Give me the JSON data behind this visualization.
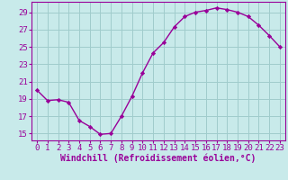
{
  "x": [
    0,
    1,
    2,
    3,
    4,
    5,
    6,
    7,
    8,
    9,
    10,
    11,
    12,
    13,
    14,
    15,
    16,
    17,
    18,
    19,
    20,
    21,
    22,
    23
  ],
  "y": [
    20.0,
    18.8,
    18.9,
    18.6,
    16.5,
    15.8,
    14.9,
    15.0,
    17.0,
    19.3,
    22.0,
    24.3,
    25.5,
    27.3,
    28.5,
    29.0,
    29.2,
    29.5,
    29.3,
    29.0,
    28.5,
    27.5,
    26.3,
    25.0
  ],
  "line_color": "#990099",
  "marker": "D",
  "marker_size": 2.2,
  "bg_color": "#c8eaea",
  "grid_color": "#a0cccc",
  "xlabel": "Windchill (Refroidissement éolien,°C)",
  "yticks": [
    15,
    17,
    19,
    21,
    23,
    25,
    27,
    29
  ],
  "ylim": [
    14.2,
    30.2
  ],
  "xlim": [
    -0.5,
    23.5
  ],
  "xticks": [
    0,
    1,
    2,
    3,
    4,
    5,
    6,
    7,
    8,
    9,
    10,
    11,
    12,
    13,
    14,
    15,
    16,
    17,
    18,
    19,
    20,
    21,
    22,
    23
  ],
  "xlabel_fontsize": 7.0,
  "tick_fontsize": 6.5,
  "line_width": 1.0
}
